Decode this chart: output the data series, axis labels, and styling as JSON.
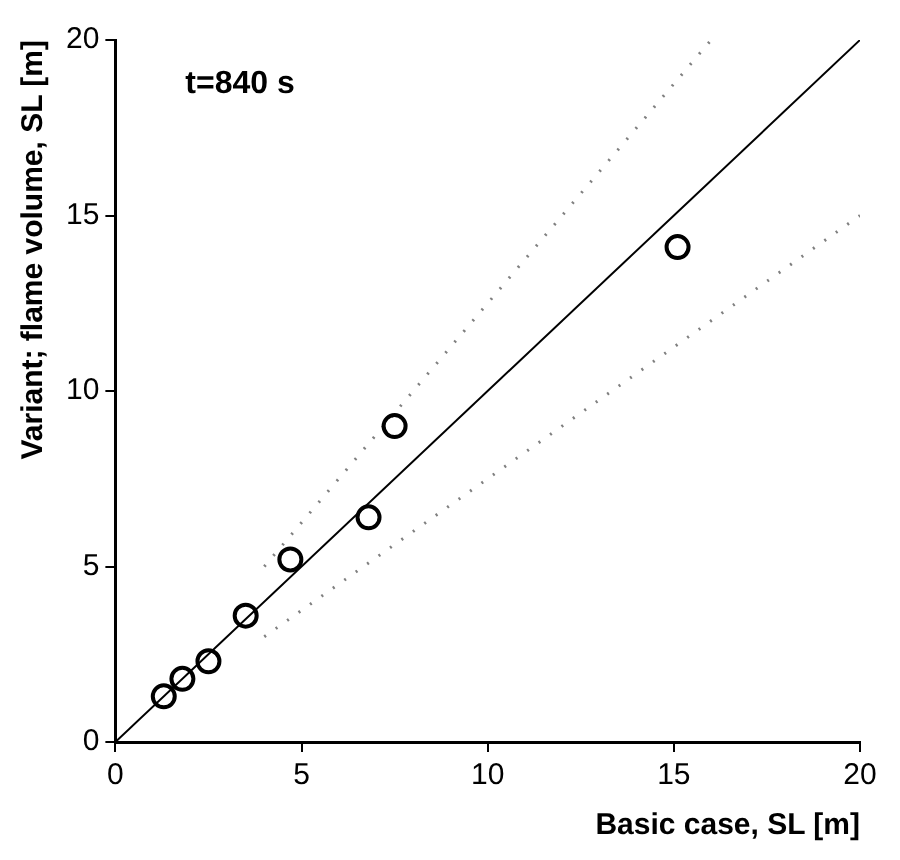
{
  "chart_data": {
    "type": "scatter",
    "xlabel": "Basic case, SL [m]",
    "ylabel": "Variant; flame volume, SL [m]",
    "annotations": [
      "t=840 s"
    ],
    "xlim": [
      0,
      20
    ],
    "ylim": [
      0,
      20
    ],
    "xticks": [
      0,
      5,
      10,
      15,
      20
    ],
    "yticks": [
      0,
      5,
      10,
      15,
      20
    ],
    "grid": false,
    "legend": false,
    "marker": "circle",
    "series": [
      {
        "color": "#000000",
        "x": [
          1.3,
          1.8,
          2.5,
          3.5,
          4.7,
          6.8,
          7.5,
          15.1
        ],
        "values": [
          1.3,
          1.8,
          2.3,
          3.6,
          5.2,
          6.4,
          9.0,
          14.1
        ]
      },
      {
        "type": "line",
        "color": "#000000",
        "line_style": "solid",
        "marker": "none",
        "x": [
          0,
          20
        ],
        "values": [
          0,
          20
        ]
      },
      {
        "type": "line",
        "color": "#808080",
        "line_style": "dotted",
        "marker": "none",
        "x": [
          4,
          16
        ],
        "values": [
          5,
          20
        ]
      },
      {
        "type": "line",
        "color": "#808080",
        "line_style": "dotted",
        "marker": "none",
        "x": [
          4,
          20
        ],
        "values": [
          3,
          15
        ]
      }
    ]
  }
}
